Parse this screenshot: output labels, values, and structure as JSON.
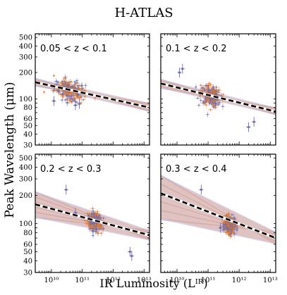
{
  "figure": {
    "title": "H-ATLAS",
    "ylabel": "Peak Wavelength (μm)",
    "xlabel": "IR Luminosity (Lᴵᴿ)",
    "x_tick_labels": [
      "10¹⁰",
      "10¹¹",
      "10¹²",
      "10¹³"
    ],
    "y_tick_labels": [
      "30",
      "40",
      "50",
      "60",
      "80",
      "100",
      "200",
      "300",
      "400",
      "500"
    ],
    "colors": {
      "points_a": "#6f6fb0",
      "points_b": "#e07a30",
      "fit_band_a": "#8a8ad0",
      "fit_band_b": "#f0a070",
      "fit_line": "#000000"
    }
  },
  "chart_data": [
    {
      "type": "scatter",
      "panel_label": "0.05 < z < 0.1",
      "xscale": "log",
      "yscale": "log",
      "xlim": [
        3000000000.0,
        15000000000000.0
      ],
      "ylim": [
        30,
        550
      ],
      "cloud": {
        "x_center": 40000000000.0,
        "x_spread_dex": 0.45,
        "y_center": 125,
        "y_spread_dex": 0.08
      },
      "fit_line": {
        "x": [
          3000000000.0,
          15000000000000.0
        ],
        "y": [
          155,
          80
        ]
      },
      "fit_band": {
        "y_lower": [
          140,
          72
        ],
        "y_upper": [
          172,
          90
        ]
      },
      "outliers": [
        {
          "x": 60000000000.0,
          "y": 85
        },
        {
          "x": 80000000000.0,
          "y": 88
        },
        {
          "x": 12000000000.0,
          "y": 95
        }
      ]
    },
    {
      "type": "scatter",
      "panel_label": "0.1 < z < 0.2",
      "xscale": "log",
      "yscale": "log",
      "xlim": [
        3000000000.0,
        15000000000000.0
      ],
      "ylim": [
        30,
        550
      ],
      "cloud": {
        "x_center": 120000000000.0,
        "x_spread_dex": 0.3,
        "y_center": 110,
        "y_spread_dex": 0.08
      },
      "fit_line": {
        "x": [
          3000000000.0,
          15000000000000.0
        ],
        "y": [
          150,
          72
        ]
      },
      "fit_band": {
        "y_lower": [
          132,
          66
        ],
        "y_upper": [
          168,
          80
        ]
      },
      "outliers": [
        {
          "x": 15000000000.0,
          "y": 220
        },
        {
          "x": 12000000000.0,
          "y": 200
        },
        {
          "x": 2000000000000.0,
          "y": 48
        },
        {
          "x": 3000000000000.0,
          "y": 55
        }
      ]
    },
    {
      "type": "scatter",
      "panel_label": "0.2 < z < 0.3",
      "xscale": "log",
      "yscale": "log",
      "xlim": [
        3000000000.0,
        15000000000000.0
      ],
      "ylim": [
        30,
        550
      ],
      "cloud": {
        "x_center": 250000000000.0,
        "x_spread_dex": 0.2,
        "y_center": 105,
        "y_spread_dex": 0.07
      },
      "fit_line": {
        "x": [
          3000000000.0,
          15000000000000.0
        ],
        "y": [
          160,
          75
        ]
      },
      "fit_band": {
        "y_lower": [
          115,
          66
        ],
        "y_upper": [
          220,
          85
        ]
      },
      "outliers": [
        {
          "x": 30000000000.0,
          "y": 230
        },
        {
          "x": 4000000000000.0,
          "y": 45
        },
        {
          "x": 3500000000000.0,
          "y": 50
        },
        {
          "x": 60000000000.0,
          "y": 130
        }
      ]
    },
    {
      "type": "scatter",
      "panel_label": "0.3 < z < 0.4",
      "xscale": "log",
      "yscale": "log",
      "xlim": [
        3000000000.0,
        15000000000000.0
      ],
      "ylim": [
        30,
        550
      ],
      "cloud": {
        "x_center": 500000000000.0,
        "x_spread_dex": 0.15,
        "y_center": 95,
        "y_spread_dex": 0.06
      },
      "fit_line": {
        "x": [
          3000000000.0,
          15000000000000.0
        ],
        "y": [
          210,
          70
        ]
      },
      "fit_band": {
        "y_lower": [
          110,
          60
        ],
        "y_upper": [
          330,
          82
        ]
      },
      "outliers": [
        {
          "x": 60000000000.0,
          "y": 230
        },
        {
          "x": 250000000000.0,
          "y": 90
        }
      ]
    }
  ]
}
